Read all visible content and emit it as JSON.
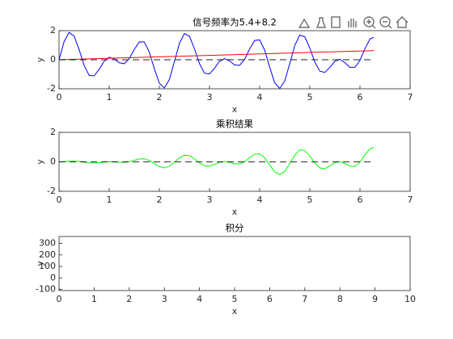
{
  "chart_data": [
    {
      "type": "line",
      "title": "信号频率为5.4+8.2",
      "xlabel": "x",
      "ylabel": "y",
      "xlim": [
        0,
        7
      ],
      "ylim": [
        -2,
        2
      ],
      "xticks": [
        0,
        1,
        2,
        3,
        4,
        5,
        6,
        7
      ],
      "yticks": [
        -2,
        0,
        2
      ],
      "series": [
        {
          "color": "#0000ff",
          "linestyle": "solid",
          "x": [
            0,
            0.1,
            0.2,
            0.3,
            0.4,
            0.5,
            0.6,
            0.7,
            0.8,
            0.9,
            1.0,
            1.1,
            1.2,
            1.3,
            1.4,
            1.5,
            1.6,
            1.7,
            1.8,
            1.9,
            2.0,
            2.1,
            2.2,
            2.3,
            2.4,
            2.5,
            2.6,
            2.7,
            2.8,
            2.9,
            3.0,
            3.1,
            3.2,
            3.3,
            3.4,
            3.5,
            3.6,
            3.7,
            3.8,
            3.9,
            4.0,
            4.1,
            4.2,
            4.3,
            4.4,
            4.5,
            4.6,
            4.7,
            4.8,
            4.9,
            5.0,
            5.1,
            5.2,
            5.3,
            5.4,
            5.5,
            5.6,
            5.7,
            5.8,
            5.9,
            6.0,
            6.1,
            6.2,
            6.28
          ],
          "values": [
            0,
            1.245,
            1.88,
            1.629,
            0.696,
            -0.392,
            -1.078,
            -1.113,
            -0.651,
            -0.099,
            0.168,
            0.058,
            -0.208,
            -0.273,
            0.072,
            0.707,
            1.23,
            1.222,
            0.517,
            -0.615,
            -1.618,
            -1.942,
            -1.357,
            -0.134,
            1.126,
            1.801,
            1.616,
            0.75,
            -0.268,
            -0.927,
            -0.98,
            -0.577,
            -0.105,
            0.08,
            -0.085,
            -0.363,
            -0.389,
            0.025,
            0.74,
            1.327,
            1.364,
            0.661,
            -0.518,
            -1.588,
            -1.978,
            -1.458,
            -0.27,
            0.983,
            1.701,
            1.574,
            0.798,
            -0.16,
            -0.791,
            -0.871,
            -0.517,
            -0.105,
            0.031,
            -0.206,
            -0.519,
            -0.524,
            -0.043,
            0.767,
            1.427,
            1.546
          ]
        },
        {
          "color": "#ff0000",
          "linestyle": "solid",
          "x": [
            0,
            6.28
          ],
          "values": [
            0,
            0.628
          ]
        },
        {
          "color": "#000000",
          "linestyle": "dashed",
          "x": [
            0,
            6.28
          ],
          "values": [
            0,
            0
          ]
        }
      ]
    },
    {
      "type": "line",
      "title": "乘积结果",
      "xlabel": "x",
      "ylabel": "y",
      "xlim": [
        0,
        7
      ],
      "ylim": [
        -2,
        2
      ],
      "xticks": [
        0,
        1,
        2,
        3,
        4,
        5,
        6,
        7
      ],
      "yticks": [
        -2,
        0,
        2
      ],
      "series": [
        {
          "color": "#00ff00",
          "linestyle": "solid",
          "x": [
            0,
            0.1,
            0.2,
            0.3,
            0.4,
            0.5,
            0.6,
            0.7,
            0.8,
            0.9,
            1.0,
            1.1,
            1.2,
            1.3,
            1.4,
            1.5,
            1.6,
            1.7,
            1.8,
            1.9,
            2.0,
            2.1,
            2.2,
            2.3,
            2.4,
            2.5,
            2.6,
            2.7,
            2.8,
            2.9,
            3.0,
            3.1,
            3.2,
            3.3,
            3.4,
            3.5,
            3.6,
            3.7,
            3.8,
            3.9,
            4.0,
            4.1,
            4.2,
            4.3,
            4.4,
            4.5,
            4.6,
            4.7,
            4.8,
            4.9,
            5.0,
            5.1,
            5.2,
            5.3,
            5.4,
            5.5,
            5.6,
            5.7,
            5.8,
            5.9,
            6.0,
            6.1,
            6.2,
            6.28
          ],
          "values": [
            0,
            0.012,
            0.038,
            0.049,
            0.028,
            -0.02,
            -0.065,
            -0.078,
            -0.052,
            -0.009,
            0.017,
            0.006,
            -0.025,
            -0.035,
            0.01,
            0.106,
            0.197,
            0.208,
            0.093,
            -0.117,
            -0.324,
            -0.408,
            -0.299,
            -0.031,
            0.27,
            0.45,
            0.42,
            0.203,
            -0.075,
            -0.269,
            -0.294,
            -0.179,
            -0.034,
            0.026,
            -0.029,
            -0.127,
            -0.14,
            0.009,
            0.281,
            0.518,
            0.546,
            0.271,
            -0.218,
            -0.683,
            -0.87,
            -0.656,
            -0.124,
            0.462,
            0.816,
            0.771,
            0.399,
            -0.082,
            -0.411,
            -0.462,
            -0.279,
            -0.058,
            0.017,
            -0.117,
            -0.301,
            -0.309,
            -0.026,
            0.468,
            0.885,
            0.971
          ]
        },
        {
          "color": "#000000",
          "linestyle": "dashed",
          "x": [
            0,
            6.28
          ],
          "values": [
            0,
            0
          ]
        }
      ]
    },
    {
      "type": "line",
      "title": "积分",
      "xlabel": "x",
      "ylabel": "y",
      "xlim": [
        0,
        10
      ],
      "ylim": [
        -110,
        360
      ],
      "xticks": [
        0,
        1,
        2,
        3,
        4,
        5,
        6,
        7,
        8,
        9,
        10
      ],
      "yticks": [
        -100,
        0,
        100,
        200,
        300
      ],
      "series": []
    }
  ]
}
